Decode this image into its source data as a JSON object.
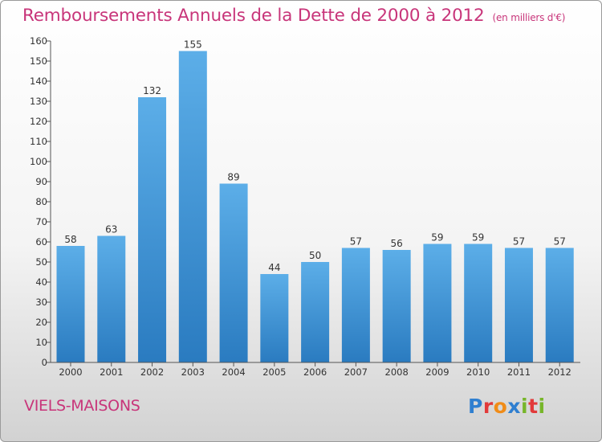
{
  "header": {
    "title": "Remboursements Annuels de la Dette de 2000 à 2012",
    "unit": "(en milliers d'€)"
  },
  "footer": {
    "town": "VIELS-MAISONS",
    "brand": "Proxiti",
    "brand_letters": [
      "P",
      "r",
      "o",
      "x",
      "i",
      "t",
      "i"
    ]
  },
  "colors": {
    "title": "#c8357a",
    "bar_top": "#5caee8",
    "bar_bottom": "#2a7bc0"
  },
  "chart_data": {
    "type": "bar",
    "title": "Remboursements Annuels de la Dette de 2000 à 2012",
    "subtitle": "(en milliers d'€)",
    "xlabel": "",
    "ylabel": "",
    "categories": [
      "2000",
      "2001",
      "2002",
      "2003",
      "2004",
      "2005",
      "2006",
      "2007",
      "2008",
      "2009",
      "2010",
      "2011",
      "2012"
    ],
    "values": [
      58,
      63,
      132,
      155,
      89,
      44,
      50,
      57,
      56,
      59,
      59,
      57,
      57
    ],
    "data_labels": [
      "58",
      "63",
      "132",
      "155",
      "89",
      "44",
      "50",
      "57",
      "56",
      "59",
      "59",
      "57",
      "57"
    ],
    "ylim": [
      0,
      160
    ],
    "yticks": [
      0,
      10,
      20,
      30,
      40,
      50,
      60,
      70,
      80,
      90,
      100,
      110,
      120,
      130,
      140,
      150,
      160
    ],
    "grid": false,
    "legend": "none"
  }
}
